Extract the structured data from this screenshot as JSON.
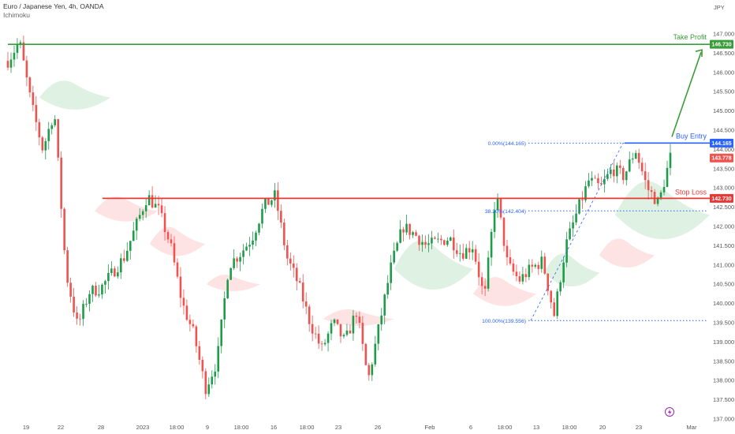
{
  "header": {
    "title": "Euro / Japanese Yen, 4h, OANDA",
    "indicator": "Ichimoku"
  },
  "currency_label": "JPY",
  "colors": {
    "up": "#26a69a",
    "up_candle": "#1e9c4a",
    "down": "#ef5350",
    "take_profit": "#3a9c3a",
    "buy_entry": "#2962ff",
    "stop_loss": "#e53935",
    "cloud_bull": "#dff1e2",
    "cloud_bear": "#fde3e3"
  },
  "annotations": {
    "take_profit": {
      "label": "Take Profit",
      "price": 146.73,
      "tag": "146.730"
    },
    "buy_entry": {
      "label": "Buy Entry",
      "price": 144.165,
      "tag": "144.165"
    },
    "stop_loss": {
      "label": "Stop Loss",
      "price": 142.73,
      "tag": "142.730"
    },
    "current_price": {
      "price": 143.778,
      "tag": "143.778"
    }
  },
  "fib_levels": [
    {
      "label": "0.00%(144.165)",
      "price": 144.165
    },
    {
      "label": "38.20%(142.404)",
      "price": 142.404
    },
    {
      "label": "100.00%(139.556)",
      "price": 139.556
    }
  ],
  "chart_data": {
    "type": "candlestick",
    "title": "Euro / Japanese Yen, 4h, OANDA",
    "ylim": [
      137.0,
      147.3
    ],
    "y_ticks": [
      "147.000",
      "146.500",
      "146.000",
      "145.500",
      "145.000",
      "144.500",
      "144.000",
      "143.500",
      "143.000",
      "142.500",
      "142.000",
      "141.500",
      "141.000",
      "140.500",
      "140.000",
      "139.500",
      "139.000",
      "138.500",
      "138.000",
      "137.500",
      "137.000"
    ],
    "x_ticks": [
      "19",
      "22",
      "28",
      "2023",
      "18:00",
      "9",
      "18:00",
      "16",
      "18:00",
      "23",
      "26",
      "Feb",
      "6",
      "18:00",
      "13",
      "18:00",
      "20",
      "23",
      "Mar"
    ],
    "waypoints": [
      146.3,
      146.8,
      145.2,
      144.0,
      145.0,
      140.8,
      139.4,
      140.3,
      140.4,
      140.8,
      141.2,
      142.0,
      142.8,
      142.4,
      141.5,
      140.0,
      139.2,
      137.8,
      138.5,
      141.0,
      141.3,
      141.7,
      142.5,
      142.8,
      141.2,
      140.5,
      139.5,
      138.8,
      139.5,
      139.0,
      139.8,
      138.0,
      139.5,
      141.0,
      142.0,
      141.8,
      141.5,
      141.6,
      141.7,
      141.3,
      141.5,
      140.1,
      142.9,
      141.0,
      140.6,
      140.9,
      141.1,
      139.7,
      141.5,
      142.4,
      143.2,
      143.0,
      143.5,
      143.3,
      144.0,
      143.0,
      142.6,
      143.8
    ],
    "cloud": [
      {
        "upper": 145.7,
        "lower": 145.0,
        "sentiment": "bull"
      },
      {
        "upper": 142.7,
        "lower": 142.1,
        "sentiment": "bear"
      },
      {
        "upper": 141.9,
        "lower": 141.2,
        "sentiment": "bear"
      },
      {
        "upper": 140.7,
        "lower": 140.3,
        "sentiment": "bear"
      },
      {
        "upper": 139.8,
        "lower": 139.4,
        "sentiment": "bear"
      },
      {
        "upper": 141.5,
        "lower": 140.3,
        "sentiment": "bull"
      },
      {
        "upper": 140.6,
        "lower": 139.9,
        "sentiment": "bear"
      },
      {
        "upper": 141.2,
        "lower": 140.4,
        "sentiment": "bull"
      },
      {
        "upper": 141.6,
        "lower": 140.9,
        "sentiment": "bear"
      },
      {
        "upper": 143.0,
        "lower": 141.6,
        "sentiment": "bull"
      }
    ]
  }
}
